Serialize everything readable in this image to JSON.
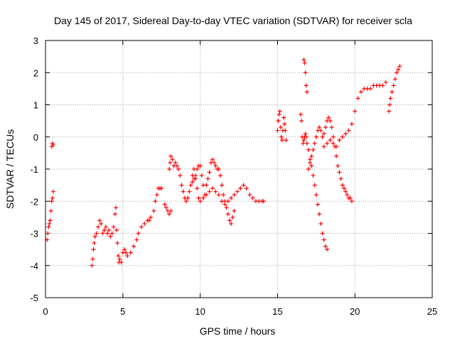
{
  "chart_data": {
    "type": "scatter",
    "title": "Day 145 of 2017, Sidereal Day-to-day VTEC variation (SDTVAR) for receiver scla",
    "xlabel": "GPS time / hours",
    "ylabel": "SDTVAR / TECUs",
    "xlim": [
      0,
      25
    ],
    "ylim": [
      -5,
      3
    ],
    "xticks": [
      0,
      5,
      10,
      15,
      20,
      25
    ],
    "yticks": [
      -5,
      -4,
      -3,
      -2,
      -1,
      0,
      1,
      2,
      3
    ],
    "grid": true,
    "marker": "+",
    "color": "#ff0000",
    "series": [
      {
        "name": "seg-1",
        "x": [
          0.1,
          0.15,
          0.2,
          0.25,
          0.3,
          0.35,
          0.4,
          0.45,
          0.5
        ],
        "y": [
          -3.2,
          -3.0,
          -2.8,
          -2.7,
          -2.6,
          -2.3,
          -2.0,
          -1.9,
          -1.7
        ]
      },
      {
        "name": "seg-2",
        "x": [
          0.4,
          0.45,
          0.5
        ],
        "y": [
          -0.3,
          -0.2,
          -0.25
        ]
      },
      {
        "name": "seg-3",
        "x": [
          3.0,
          3.05,
          3.1,
          3.15,
          3.2,
          3.3,
          3.4,
          3.5,
          3.6,
          3.7,
          3.8,
          3.9,
          4.0,
          4.1,
          4.2,
          4.3,
          4.4,
          4.5,
          4.55,
          4.6,
          4.65,
          4.7,
          4.75,
          4.8,
          4.9,
          5.0,
          5.1,
          5.2,
          5.3,
          5.5,
          5.7,
          5.9,
          6.0,
          6.2,
          6.4,
          6.6,
          6.7,
          6.8,
          7.0,
          7.1,
          7.2,
          7.3,
          7.4,
          7.5
        ],
        "y": [
          -4.0,
          -3.8,
          -3.5,
          -3.3,
          -3.1,
          -3.0,
          -2.8,
          -2.6,
          -2.7,
          -3.0,
          -2.9,
          -2.8,
          -3.0,
          -2.9,
          -3.1,
          -3.0,
          -2.8,
          -2.4,
          -2.2,
          -2.9,
          -3.3,
          -3.7,
          -3.9,
          -3.8,
          -3.9,
          -3.6,
          -3.5,
          -3.6,
          -3.7,
          -3.6,
          -3.4,
          -3.2,
          -3.0,
          -2.8,
          -2.7,
          -2.6,
          -2.6,
          -2.5,
          -2.3,
          -2.0,
          -1.8,
          -1.6,
          -1.6,
          -1.6
        ]
      },
      {
        "name": "seg-4",
        "x": [
          7.7,
          7.8,
          7.9,
          8.0,
          8.1
        ],
        "y": [
          -2.1,
          -2.2,
          -2.3,
          -2.4,
          -2.3
        ]
      },
      {
        "name": "seg-5",
        "x": [
          8.0,
          8.05,
          8.1,
          8.2,
          8.3,
          8.4,
          8.5,
          8.6,
          8.7,
          8.8,
          8.9,
          9.0,
          9.1,
          9.2,
          9.3,
          9.4,
          9.5,
          9.6,
          9.7,
          9.8,
          9.9,
          10.0,
          10.2,
          10.4,
          10.6,
          10.8,
          11.0,
          11.2,
          11.4,
          11.6,
          11.8,
          12.0,
          12.2,
          12.4,
          12.6,
          12.8,
          13.0,
          13.2,
          13.4,
          13.6,
          13.8,
          14.0,
          14.1
        ],
        "y": [
          -1.0,
          -0.8,
          -0.6,
          -0.7,
          -0.9,
          -0.8,
          -0.9,
          -1.0,
          -1.2,
          -1.5,
          -1.7,
          -1.9,
          -2.0,
          -1.9,
          -1.7,
          -1.5,
          -1.2,
          -1.0,
          -1.3,
          -1.6,
          -1.9,
          -2.0,
          -1.9,
          -1.8,
          -1.7,
          -1.6,
          -1.7,
          -1.8,
          -2.0,
          -2.1,
          -2.0,
          -1.9,
          -1.8,
          -1.7,
          -1.6,
          -1.5,
          -1.6,
          -1.8,
          -1.9,
          -2.0,
          -2.0,
          -2.0,
          -2.0
        ]
      },
      {
        "name": "seg-6",
        "x": [
          9.5,
          9.6,
          9.7,
          9.8,
          9.9,
          10.0,
          10.1,
          10.2,
          10.3,
          10.4,
          10.5,
          10.6,
          10.7,
          10.8,
          10.9,
          11.0,
          11.1,
          11.2,
          11.3,
          11.4,
          11.5,
          11.6,
          11.7,
          11.8,
          11.9,
          12.0,
          12.1,
          12.2
        ],
        "y": [
          -1.4,
          -1.3,
          -1.2,
          -1.0,
          -0.9,
          -0.9,
          -1.2,
          -1.5,
          -1.8,
          -1.5,
          -1.3,
          -1.1,
          -0.8,
          -0.7,
          -0.8,
          -0.9,
          -1.0,
          -1.0,
          -1.2,
          -1.5,
          -1.8,
          -2.0,
          -2.2,
          -2.4,
          -2.6,
          -2.7,
          -2.5,
          -2.3
        ]
      },
      {
        "name": "seg-7",
        "x": [
          15.0,
          15.05,
          15.1,
          15.15,
          15.2,
          15.25,
          15.3,
          15.35,
          15.4,
          15.45,
          15.5,
          15.55
        ],
        "y": [
          0.2,
          0.5,
          0.7,
          0.8,
          0.3,
          0.0,
          -0.1,
          0.2,
          0.6,
          0.4,
          0.2,
          -0.1
        ]
      },
      {
        "name": "seg-8",
        "x": [
          16.5,
          16.55,
          16.6,
          16.65,
          16.7,
          16.75,
          16.8,
          16.85
        ],
        "y": [
          0.7,
          0.5,
          0.0,
          -0.2,
          -0.1,
          0.0,
          0.1,
          0.0
        ]
      },
      {
        "name": "seg-9",
        "x": [
          16.7,
          16.75,
          16.8,
          16.85,
          16.9
        ],
        "y": [
          2.4,
          2.3,
          2.0,
          1.6,
          1.4
        ]
      },
      {
        "name": "seg-10",
        "x": [
          16.9,
          17.0,
          17.1,
          17.2,
          17.3,
          17.4,
          17.5,
          17.6,
          17.7,
          17.8,
          17.9,
          18.0,
          18.1,
          18.2
        ],
        "y": [
          -0.2,
          -0.4,
          -0.7,
          -0.9,
          -1.2,
          -1.5,
          -1.8,
          -2.1,
          -2.4,
          -2.7,
          -3.0,
          -3.2,
          -3.4,
          -3.5
        ]
      },
      {
        "name": "seg-11",
        "x": [
          17.0,
          17.1,
          17.2,
          17.3,
          17.4,
          17.5,
          17.6,
          17.7,
          17.8,
          17.9,
          18.0,
          18.1,
          18.2,
          18.3,
          18.4,
          18.5,
          18.6,
          18.7,
          18.8,
          18.9,
          19.0,
          19.1,
          19.2,
          19.3,
          19.4,
          19.5,
          19.6,
          19.7,
          19.8
        ],
        "y": [
          -1.0,
          -0.8,
          -0.6,
          -0.4,
          -0.2,
          0.0,
          0.2,
          0.3,
          0.2,
          0.0,
          0.1,
          0.3,
          0.5,
          0.6,
          0.5,
          0.3,
          0.0,
          -0.3,
          -0.6,
          -0.9,
          -1.1,
          -1.3,
          -1.5,
          -1.6,
          -1.7,
          -1.8,
          -1.9,
          -1.9,
          -2.0
        ]
      },
      {
        "name": "seg-12",
        "x": [
          18.0,
          18.2,
          18.4,
          18.6,
          18.8,
          19.0,
          19.2,
          19.4,
          19.6,
          19.8,
          20.0,
          20.2,
          20.4,
          20.6,
          20.8,
          21.0,
          21.2,
          21.4,
          21.6,
          21.8,
          22.0
        ],
        "y": [
          -0.3,
          -0.2,
          -0.1,
          -0.2,
          -0.3,
          -0.1,
          0.0,
          0.1,
          0.2,
          0.4,
          0.8,
          1.2,
          1.4,
          1.5,
          1.5,
          1.5,
          1.6,
          1.6,
          1.6,
          1.6,
          1.7
        ]
      },
      {
        "name": "seg-13",
        "x": [
          22.2,
          22.25,
          22.3,
          22.4,
          22.5,
          22.6,
          22.7,
          22.8,
          22.9
        ],
        "y": [
          0.8,
          1.0,
          1.2,
          1.4,
          1.6,
          1.8,
          2.0,
          2.1,
          2.2
        ]
      }
    ]
  }
}
